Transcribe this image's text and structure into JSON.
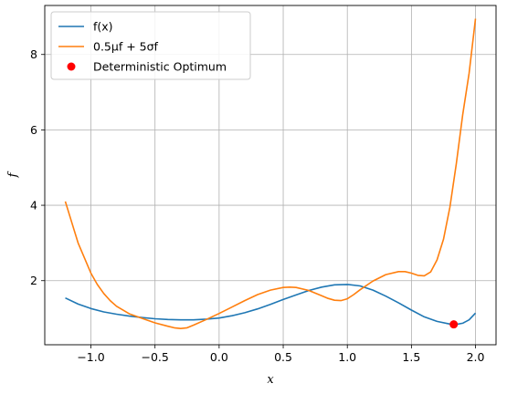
{
  "chart_data": {
    "type": "line",
    "xlabel": "x",
    "ylabel": "f",
    "xlim": [
      -1.36,
      2.16
    ],
    "ylim": [
      0.3,
      9.3
    ],
    "xticks": [
      -1.0,
      -0.5,
      0.0,
      0.5,
      1.0,
      1.5,
      2.0
    ],
    "xtick_labels": [
      "−1.0",
      "−0.5",
      "0.0",
      "0.5",
      "1.0",
      "1.5",
      "2.0"
    ],
    "yticks": [
      2,
      4,
      6,
      8
    ],
    "ytick_labels": [
      "2",
      "4",
      "6",
      "8"
    ],
    "grid": true,
    "legend_position": "top-left",
    "series": [
      {
        "name": "f(x)",
        "color": "#1f77b4",
        "x": [
          -1.2,
          -1.1,
          -1.0,
          -0.9,
          -0.8,
          -0.7,
          -0.6,
          -0.5,
          -0.4,
          -0.3,
          -0.2,
          -0.1,
          0.0,
          0.1,
          0.2,
          0.3,
          0.4,
          0.5,
          0.6,
          0.7,
          0.8,
          0.9,
          1.0,
          1.1,
          1.2,
          1.3,
          1.4,
          1.5,
          1.6,
          1.7,
          1.8,
          1.85,
          1.9,
          1.95,
          2.0
        ],
        "y": [
          1.54,
          1.38,
          1.26,
          1.17,
          1.11,
          1.06,
          1.02,
          0.99,
          0.97,
          0.96,
          0.96,
          0.98,
          1.01,
          1.07,
          1.15,
          1.25,
          1.37,
          1.5,
          1.62,
          1.74,
          1.83,
          1.89,
          1.9,
          1.86,
          1.75,
          1.59,
          1.41,
          1.22,
          1.04,
          0.92,
          0.85,
          0.84,
          0.87,
          0.96,
          1.14
        ]
      },
      {
        "name": "0.5μf + 5σf",
        "color": "#ff7f0e",
        "x": [
          -1.2,
          -1.15,
          -1.1,
          -1.05,
          -1.0,
          -0.95,
          -0.9,
          -0.85,
          -0.8,
          -0.7,
          -0.6,
          -0.5,
          -0.4,
          -0.35,
          -0.3,
          -0.25,
          -0.2,
          -0.1,
          0.0,
          0.1,
          0.2,
          0.3,
          0.4,
          0.5,
          0.55,
          0.6,
          0.7,
          0.8,
          0.85,
          0.9,
          0.95,
          1.0,
          1.05,
          1.1,
          1.2,
          1.3,
          1.4,
          1.45,
          1.5,
          1.55,
          1.6,
          1.65,
          1.7,
          1.75,
          1.8,
          1.85,
          1.9,
          1.95,
          2.0
        ],
        "y": [
          4.1,
          3.55,
          3.0,
          2.6,
          2.2,
          1.9,
          1.66,
          1.47,
          1.32,
          1.12,
          1.0,
          0.88,
          0.79,
          0.75,
          0.73,
          0.75,
          0.82,
          0.97,
          1.13,
          1.3,
          1.47,
          1.63,
          1.75,
          1.82,
          1.83,
          1.82,
          1.74,
          1.6,
          1.53,
          1.48,
          1.47,
          1.52,
          1.63,
          1.76,
          1.99,
          2.16,
          2.24,
          2.24,
          2.2,
          2.14,
          2.13,
          2.23,
          2.55,
          3.1,
          3.95,
          5.1,
          6.4,
          7.5,
          8.95
        ]
      },
      {
        "name": "Deterministic Optimum",
        "type": "scatter",
        "color": "#ff0000",
        "x": [
          1.83
        ],
        "y": [
          0.84
        ]
      }
    ]
  }
}
